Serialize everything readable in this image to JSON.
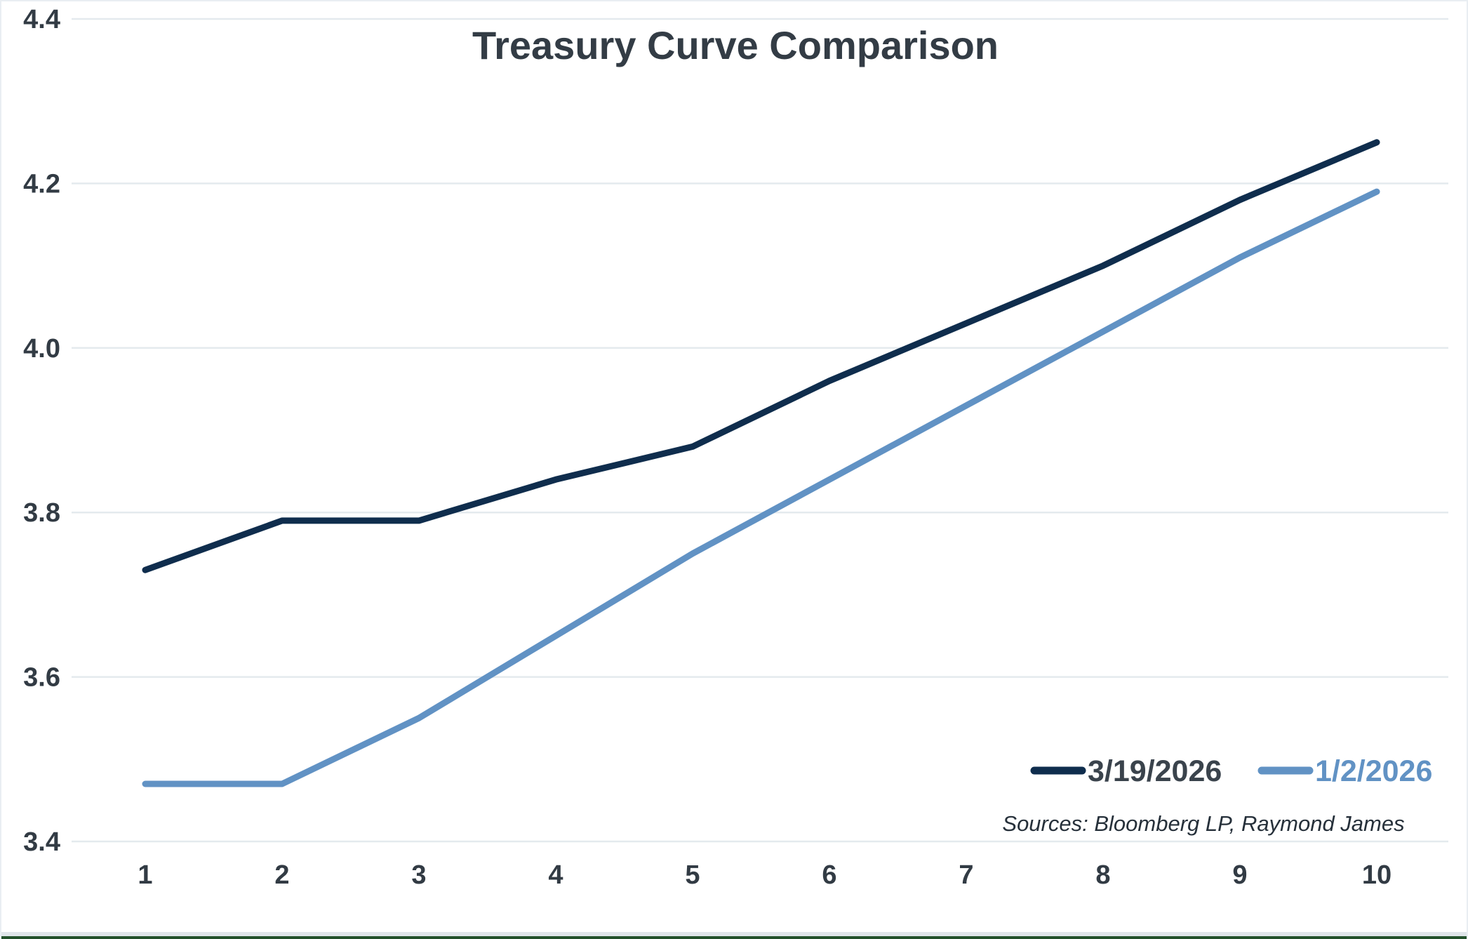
{
  "title": "Treasury Curve Comparison",
  "source_note": "Sources: Bloomberg LP, Raymond James",
  "legend": {
    "series1_label": "3/19/2026",
    "series2_label": "1/2/2026"
  },
  "colors": {
    "series1": "#0f2d4d",
    "series2": "#6192c4",
    "series1_label_text": "#3a434c",
    "series2_label_text": "#6192c4",
    "title_text": "#333c45",
    "tick_text": "#323b44",
    "gridline": "#e4eaee",
    "axis_line": "#e4eaee",
    "frame_border": "#e9eef2",
    "bottom_band": "#dfe5e9",
    "bottom_line": "#23512b"
  },
  "chart_data": {
    "type": "line",
    "title": "Treasury Curve Comparison",
    "x": [
      1,
      2,
      3,
      4,
      5,
      6,
      7,
      8,
      9,
      10
    ],
    "series": [
      {
        "name": "3/19/2026",
        "color": "#0f2d4d",
        "values": [
          3.73,
          3.79,
          3.79,
          3.84,
          3.88,
          3.96,
          4.03,
          4.1,
          4.18,
          4.25
        ]
      },
      {
        "name": "1/2/2026",
        "color": "#6192c4",
        "values": [
          3.47,
          3.47,
          3.55,
          3.65,
          3.75,
          3.84,
          3.93,
          4.02,
          4.11,
          4.19
        ]
      }
    ],
    "xlabel": "",
    "ylabel": "",
    "xlim": [
      1,
      10
    ],
    "ylim": [
      3.4,
      4.4
    ],
    "ytick_step": 0.2,
    "ytick_labels": [
      "3.4",
      "3.6",
      "3.8",
      "4.0",
      "4.2",
      "4.4"
    ],
    "grid": "horizontal",
    "legend_position": "inside-bottom-right",
    "source_note": "Sources: Bloomberg LP, Raymond James"
  }
}
